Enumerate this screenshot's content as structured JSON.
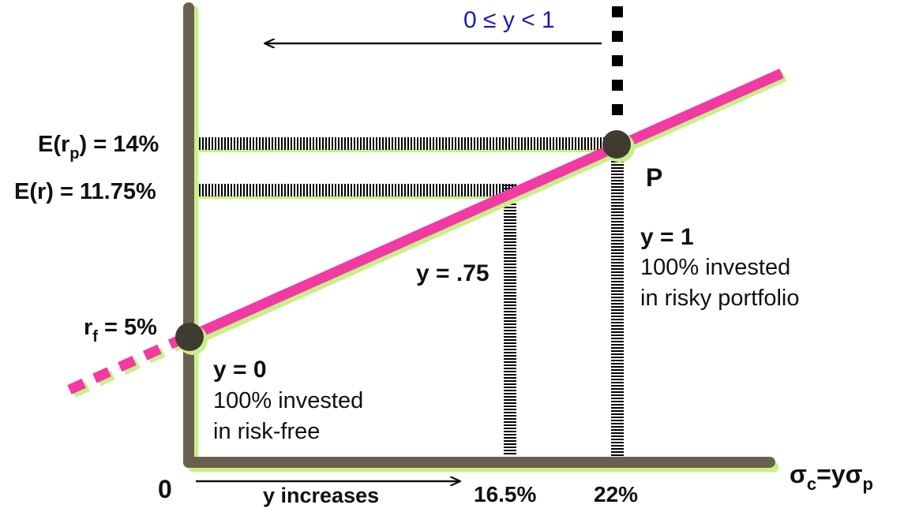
{
  "colors": {
    "axis": "#6b6050",
    "axis_shadow": "#c8f08a",
    "cal_line": "#f23aa3",
    "point": "#3f3b30",
    "arrow": "#111111",
    "blue_text": "#1a1ab8"
  },
  "labels": {
    "range_top": "0 ≤ y < 1",
    "erp_prefix": "E(r",
    "erp_sub": "p",
    "erp_suffix": ") = 14%",
    "er": "E(r) = 11.75%",
    "rf_prefix": "r",
    "rf_sub": "f",
    "rf_suffix": " = 5%",
    "point_p": "P",
    "y1": "y = 1",
    "y1_line1": "100% invested",
    "y1_line2": "in risky portfolio",
    "y075": "y = .75",
    "y0": "y = 0",
    "y0_line1": "100% invested",
    "y0_line2": "in risk-free",
    "origin": "0",
    "y_increases": "y increases",
    "x_165": "16.5%",
    "x_22": "22%",
    "x_axis_main": "σ",
    "x_axis_sub1": "c",
    "x_axis_mid": "=yσ",
    "x_axis_sub2": "p"
  }
}
